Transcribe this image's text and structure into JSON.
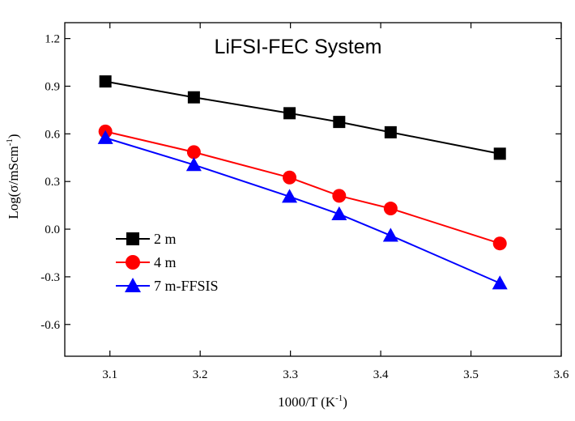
{
  "chart_data": {
    "type": "line",
    "title": "LiFSI-FEC System",
    "xlabel": {
      "main": "1000/T (K",
      "sup": "-1",
      "end": ")"
    },
    "ylabel": {
      "main": "Log(σ/mScm",
      "sup": "-1",
      "end": ")"
    },
    "xlim": [
      3.05,
      3.6
    ],
    "ylim": [
      -0.8,
      1.3
    ],
    "xticks": [
      "3.1",
      "3.2",
      "3.3",
      "3.4",
      "3.5",
      "3.6"
    ],
    "yticks": [
      "1.2",
      "0.9",
      "0.6",
      "0.3",
      "0.0",
      "-0.3",
      "-0.6"
    ],
    "x": [
      3.095,
      3.193,
      3.299,
      3.354,
      3.411,
      3.532
    ],
    "series": [
      {
        "name": "2 m",
        "marker": "square",
        "color": "#000000",
        "values": [
          0.93,
          0.83,
          0.73,
          0.675,
          0.61,
          0.475
        ]
      },
      {
        "name": "4 m",
        "marker": "circle",
        "color": "#ff0000",
        "values": [
          0.615,
          0.485,
          0.325,
          0.21,
          0.13,
          -0.09
        ]
      },
      {
        "name": "7 m-FFSIS",
        "marker": "triangle",
        "color": "#0000ff",
        "values": [
          0.575,
          0.405,
          0.205,
          0.095,
          -0.04,
          -0.34
        ]
      }
    ],
    "legend_position": "bottom-left",
    "grid": false
  }
}
